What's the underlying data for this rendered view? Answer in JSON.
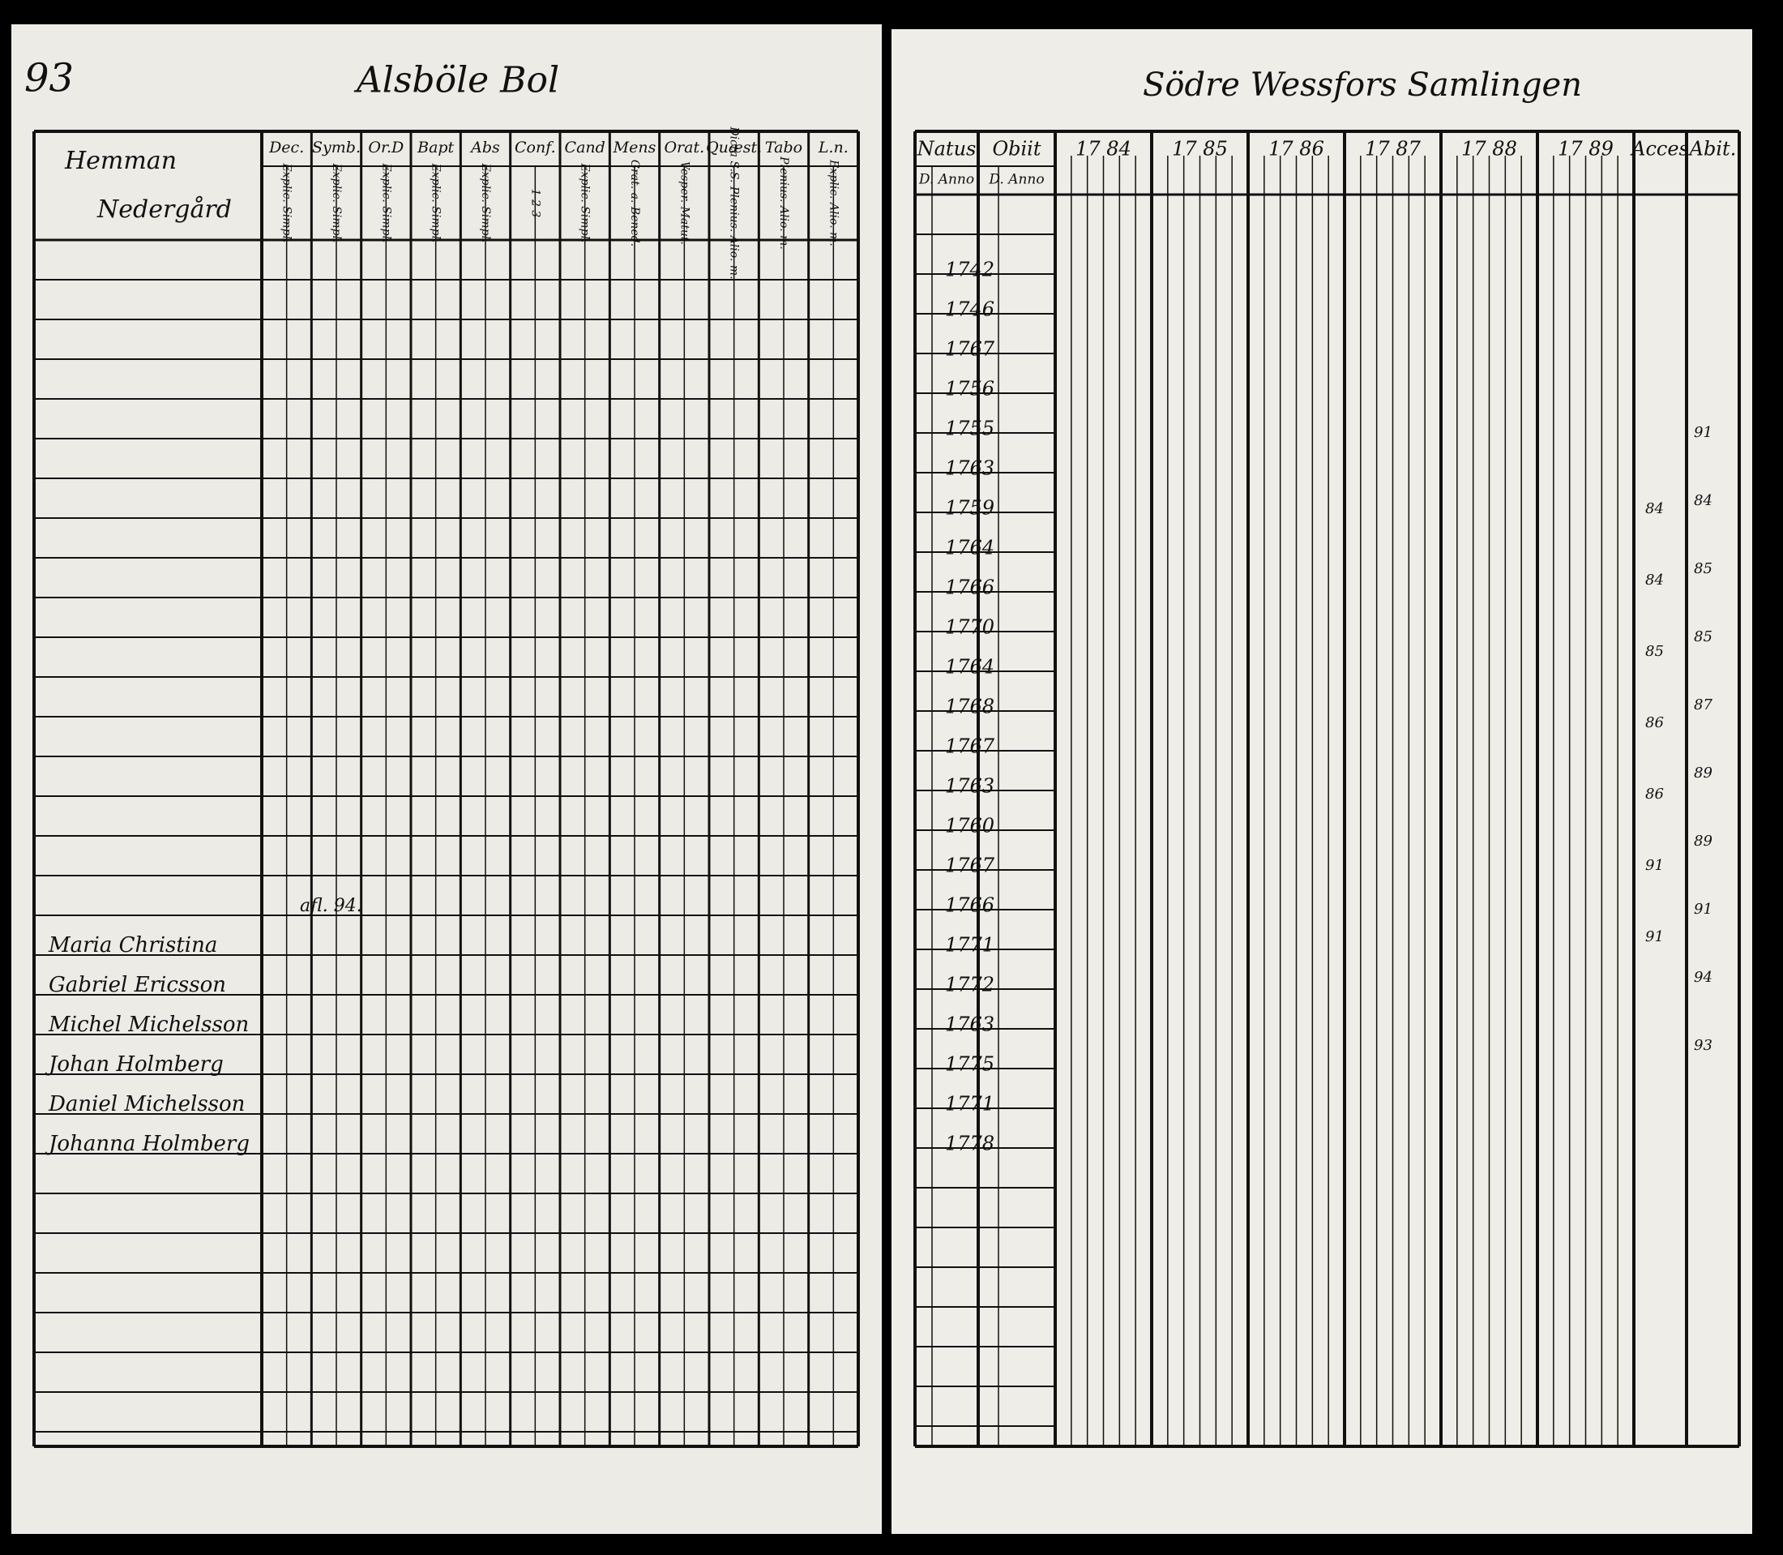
{
  "left_page": {
    "page_number": "93",
    "title": "Alsböle Bol",
    "name_header": [
      "Hemman",
      "Nedergård"
    ],
    "columns": [
      {
        "head": "Dec.",
        "sub": "Explic. Simpl."
      },
      {
        "head": "Symb.",
        "sub": "Explic. Simpl."
      },
      {
        "head": "Or.D",
        "sub": "Explic. Simpl."
      },
      {
        "head": "Bapt",
        "sub": "Explic. Simpl."
      },
      {
        "head": "Abs",
        "sub": "Explic. Simpl."
      },
      {
        "head": "Conf.",
        "sub": "1 2 3"
      },
      {
        "head": "Cand",
        "sub": "Explic. Simpl."
      },
      {
        "head": "Mens",
        "sub": "Grat. a. Bened."
      },
      {
        "head": "Orat.",
        "sub": "Vesper. Matut."
      },
      {
        "head": "Quæst.",
        "sub": "Dicta S.S. Plenius. Alio. m."
      },
      {
        "head": "Tabo",
        "sub": "Plenius. Alio. m."
      },
      {
        "head": "L.n.",
        "sub": "Explic. Alio. m."
      }
    ],
    "names": [
      "Maria Christina",
      "Gabriel Ericsson",
      "Michel Michelsson",
      "Johan Holmberg",
      "Daniel Michelsson",
      "Johanna Holmberg"
    ],
    "notes": [
      "afl. 94."
    ]
  },
  "right_page": {
    "title": "Södre Wessfors Samlingen",
    "columns": [
      {
        "head": "Natus",
        "sub": "D. Anno"
      },
      {
        "head": "Obiit",
        "sub": "D. Anno"
      },
      {
        "head": "17 84"
      },
      {
        "head": "17 85"
      },
      {
        "head": "17 86"
      },
      {
        "head": "17 87"
      },
      {
        "head": "17 88"
      },
      {
        "head": "17 89"
      },
      {
        "head": "Acces"
      },
      {
        "head": "Abit."
      }
    ],
    "birth_years": [
      "1742",
      "1746",
      "1767",
      "1756",
      "1755",
      "1763",
      "1759",
      "1764",
      "1766",
      "1770",
      "1764",
      "1768",
      "1767",
      "1763",
      "1760",
      "1767",
      "1766",
      "1771",
      "1772",
      "1763",
      "1775",
      "1771",
      "1778"
    ],
    "acces_notes": [
      "84",
      "84",
      "85",
      "86",
      "86",
      "91",
      "91"
    ],
    "abit_notes": [
      "91",
      "84",
      "85",
      "85",
      "87",
      "89",
      "89",
      "91",
      "94",
      "93"
    ]
  }
}
